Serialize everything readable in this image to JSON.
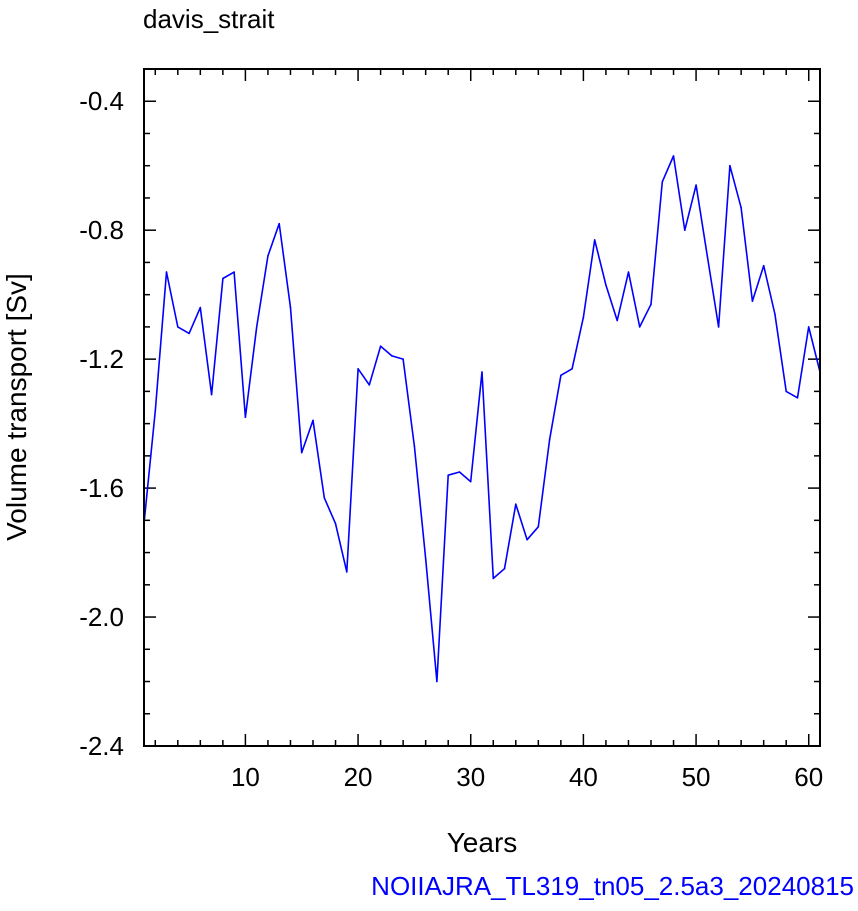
{
  "title": "davis_strait",
  "footer_label": "NOIIAJRA_TL319_tn05_2.5a3_20240815",
  "colors": {
    "line": "#0000ff",
    "footer": "#0000ff",
    "axes": "#000000"
  },
  "chart_data": {
    "type": "line",
    "title": "davis_strait",
    "xlabel": "Years",
    "ylabel": "Volume transport [Sv]",
    "xlim": [
      1,
      61
    ],
    "ylim": [
      -2.4,
      -0.3
    ],
    "xticks": [
      10,
      20,
      30,
      40,
      50,
      60
    ],
    "yticks": [
      -0.4,
      -0.8,
      -1.2,
      -1.6,
      -2.0,
      -2.4
    ],
    "ytick_labels": [
      "-0.4",
      "-0.8",
      "-1.2",
      "-1.6",
      "-2.0",
      "-2.4"
    ],
    "grid": false,
    "series": [
      {
        "x": [
          1,
          2,
          3,
          4,
          5,
          6,
          7,
          8,
          9,
          10,
          11,
          12,
          13,
          14,
          15,
          16,
          17,
          18,
          19,
          20,
          21,
          22,
          23,
          24,
          25,
          26,
          27,
          28,
          29,
          30,
          31,
          32,
          33,
          34,
          35,
          36,
          37,
          38,
          39,
          40,
          41,
          42,
          43,
          44,
          45,
          46,
          47,
          48,
          49,
          50,
          51,
          52,
          53,
          54,
          55,
          56,
          57,
          58,
          59,
          60,
          61
        ],
        "y": [
          -1.71,
          -1.36,
          -0.93,
          -1.1,
          -1.12,
          -1.04,
          -1.31,
          -0.95,
          -0.93,
          -1.38,
          -1.1,
          -0.88,
          -0.78,
          -1.04,
          -1.49,
          -1.39,
          -1.63,
          -1.71,
          -1.86,
          -1.23,
          -1.28,
          -1.16,
          -1.19,
          -1.2,
          -1.47,
          -1.82,
          -2.2,
          -1.56,
          -1.55,
          -1.58,
          -1.24,
          -1.88,
          -1.85,
          -1.65,
          -1.76,
          -1.72,
          -1.45,
          -1.25,
          -1.23,
          -1.07,
          -0.83,
          -0.97,
          -1.08,
          -0.93,
          -1.1,
          -1.03,
          -0.65,
          -0.57,
          -0.8,
          -0.66,
          -0.88,
          -1.1,
          -0.6,
          -0.73,
          -1.02,
          -0.91,
          -1.06,
          -1.3,
          -1.32,
          -1.1,
          -1.24
        ]
      }
    ]
  }
}
